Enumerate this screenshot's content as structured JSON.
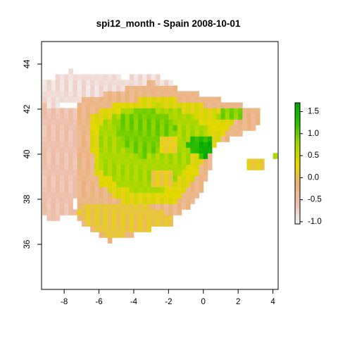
{
  "chart_data": {
    "type": "heatmap",
    "title": "spi12_month - Spain 2008-10-01",
    "x_ticks": [
      "-8",
      "-6",
      "-4",
      "-2",
      "0",
      "2",
      "4"
    ],
    "y_ticks": [
      "36",
      "38",
      "40",
      "42",
      "44"
    ],
    "xlim": [
      -9.3,
      4.3
    ],
    "ylim": [
      34.0,
      45.0
    ],
    "legend": {
      "position": "right",
      "ticks": [
        "-1.0",
        "-0.5",
        "0.0",
        "0.5",
        "1.0",
        "1.5"
      ],
      "range": [
        -1.05,
        1.7
      ],
      "colors": [
        "#f2f2f2",
        "#efc2b3",
        "#ebb37a",
        "#e6d800",
        "#a0d800",
        "#2ebf00",
        "#00a600"
      ]
    },
    "cell_size_deg": 0.25,
    "regions": [
      {
        "note": "northwest coast",
        "polygon": [
          [
            -9.3,
            43.2
          ],
          [
            -7.7,
            43.7
          ],
          [
            -5.5,
            43.5
          ],
          [
            -4.5,
            43.4
          ],
          [
            -3,
            43.5
          ],
          [
            -1.8,
            43.3
          ],
          [
            -1.6,
            43.0
          ],
          [
            -4,
            42.6
          ],
          [
            -7,
            42.4
          ],
          [
            -9.3,
            42.0
          ]
        ],
        "value": -0.85
      },
      {
        "note": "western edge",
        "polygon": [
          [
            -9.3,
            42.2
          ],
          [
            -6.8,
            42.0
          ],
          [
            -7.2,
            38.5
          ],
          [
            -7.6,
            37.4
          ],
          [
            -8.8,
            37.0
          ],
          [
            -9.3,
            37.5
          ]
        ],
        "value": -0.55
      },
      {
        "note": "ring",
        "polygon": [
          [
            -7.2,
            42.4
          ],
          [
            -3.0,
            43.2
          ],
          [
            3.2,
            42.0
          ],
          [
            3.1,
            40.9
          ],
          [
            0.6,
            40.0
          ],
          [
            0.2,
            38.8
          ],
          [
            -0.5,
            37.8
          ],
          [
            -1.6,
            37.2
          ],
          [
            -3.2,
            36.6
          ],
          [
            -5.5,
            36.1
          ],
          [
            -6.5,
            36.6
          ],
          [
            -7.4,
            37.3
          ],
          [
            -7.2,
            39.0
          ]
        ],
        "value": -0.25
      },
      {
        "note": "southwest yellow",
        "polygon": [
          [
            -7.0,
            37.8
          ],
          [
            -4.5,
            37.9
          ],
          [
            -2.5,
            37.6
          ],
          [
            -1.4,
            37.0
          ],
          [
            -3.5,
            36.6
          ],
          [
            -5.5,
            36.2
          ],
          [
            -6.5,
            36.8
          ],
          [
            -7.2,
            37.4
          ]
        ],
        "value": 0.1
      },
      {
        "note": "core",
        "polygon": [
          [
            -6.4,
            41.8
          ],
          [
            -4.8,
            42.3
          ],
          [
            -3.0,
            42.5
          ],
          [
            -1.0,
            42.4
          ],
          [
            0.8,
            42.0
          ],
          [
            2.0,
            41.6
          ],
          [
            1.0,
            40.6
          ],
          [
            -0.2,
            39.4
          ],
          [
            -0.9,
            38.4
          ],
          [
            -1.8,
            37.8
          ],
          [
            -3.6,
            37.7
          ],
          [
            -5.2,
            38.0
          ],
          [
            -6.0,
            38.8
          ],
          [
            -6.4,
            40.0
          ]
        ],
        "value": 0.35
      },
      {
        "note": "green interior",
        "polygon": [
          [
            -6.1,
            41.3
          ],
          [
            -4.5,
            42.0
          ],
          [
            -2.6,
            42.2
          ],
          [
            -0.8,
            41.8
          ],
          [
            0.4,
            41.1
          ],
          [
            -0.4,
            40.3
          ],
          [
            -1.2,
            39.2
          ],
          [
            -2.2,
            38.4
          ],
          [
            -3.4,
            38.2
          ],
          [
            -4.8,
            38.6
          ],
          [
            -6.0,
            39.4
          ]
        ],
        "value": 0.72
      },
      {
        "note": "green core",
        "polygon": [
          [
            -5.0,
            41.6
          ],
          [
            -3.4,
            42.1
          ],
          [
            -2.2,
            41.8
          ],
          [
            -1.6,
            41.2
          ],
          [
            -2.4,
            40.2
          ],
          [
            -3.6,
            39.8
          ],
          [
            -4.8,
            40.4
          ]
        ],
        "value": 0.95
      },
      {
        "note": "east green",
        "polygon": [
          [
            -0.8,
            40.8
          ],
          [
            0.2,
            40.9
          ],
          [
            0.6,
            40.4
          ],
          [
            0.2,
            39.8
          ],
          [
            -0.6,
            40.0
          ],
          [
            -1.0,
            40.4
          ]
        ],
        "value": 1.3
      },
      {
        "note": "east dark green",
        "polygon": [
          [
            -0.2,
            40.6
          ],
          [
            0.3,
            40.6
          ],
          [
            0.5,
            40.2
          ],
          [
            0.1,
            39.9
          ],
          [
            -0.3,
            40.1
          ]
        ],
        "value": 1.55
      },
      {
        "note": "northeast green",
        "polygon": [
          [
            1.0,
            42.0
          ],
          [
            2.2,
            42.0
          ],
          [
            2.4,
            41.6
          ],
          [
            1.5,
            41.4
          ],
          [
            0.8,
            41.6
          ]
        ],
        "value": 0.9
      },
      {
        "note": "madrid dry",
        "polygon": [
          [
            -2.4,
            40.8
          ],
          [
            -1.6,
            40.8
          ],
          [
            -1.6,
            40.0
          ],
          [
            -2.4,
            40.0
          ]
        ],
        "value": 0.2
      },
      {
        "note": "la mancha dry",
        "polygon": [
          [
            -3.0,
            39.4
          ],
          [
            -1.8,
            39.4
          ],
          [
            -1.8,
            38.6
          ],
          [
            -3.0,
            38.6
          ]
        ],
        "value": 0.15
      }
    ],
    "islands": [
      {
        "note": "Mallorca",
        "polygon": [
          [
            2.5,
            39.9
          ],
          [
            3.5,
            39.9
          ],
          [
            3.5,
            39.3
          ],
          [
            2.5,
            39.3
          ]
        ],
        "value": 0.15
      },
      {
        "note": "Menorca",
        "polygon": [
          [
            4.0,
            40.1
          ],
          [
            4.3,
            40.1
          ],
          [
            4.3,
            39.8
          ],
          [
            4.0,
            39.8
          ]
        ],
        "value": 0.8
      }
    ]
  }
}
